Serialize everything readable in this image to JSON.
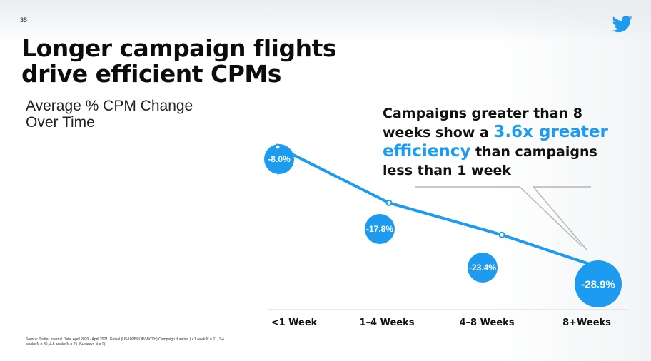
{
  "page": {
    "number": "35",
    "title_lines": [
      "Longer campaign flights",
      "drive efficient CPMs"
    ],
    "logo_icon": "twitter-bird-icon"
  },
  "callout": {
    "text_before": "Campaigns greater than 8 weeks show a ",
    "highlight": "3.6x greater efficiency",
    "text_after": " than campaigns less than 1 week"
  },
  "source": "Source: Twitter Internal Data, April 2020 - April 2021, Global (US/UK/BR/JP/MX/TH) Campaign duration ( <1 week N = 61, 1-4 weeks N = 30, 4-8 weeks N = 25, 8+ weeks N = 9)",
  "chart_data": {
    "type": "line",
    "title_lines": [
      "Average % CPM Change",
      "Over Time"
    ],
    "categories": [
      "<1 Week",
      "1–4 Weeks",
      "4–8 Weeks",
      "8+Weeks"
    ],
    "values": [
      -8.0,
      -17.8,
      -23.4,
      -28.9
    ],
    "data_labels": [
      "-8.0%",
      "-17.8%",
      "-23.4%",
      "-28.9%"
    ],
    "ylim": [
      -32,
      -2
    ],
    "grid": false,
    "legend": "none",
    "colors": {
      "line": "#1d9bf0",
      "bubble": "#1d9bf0",
      "highlight_text": "#1d9bf0"
    }
  }
}
